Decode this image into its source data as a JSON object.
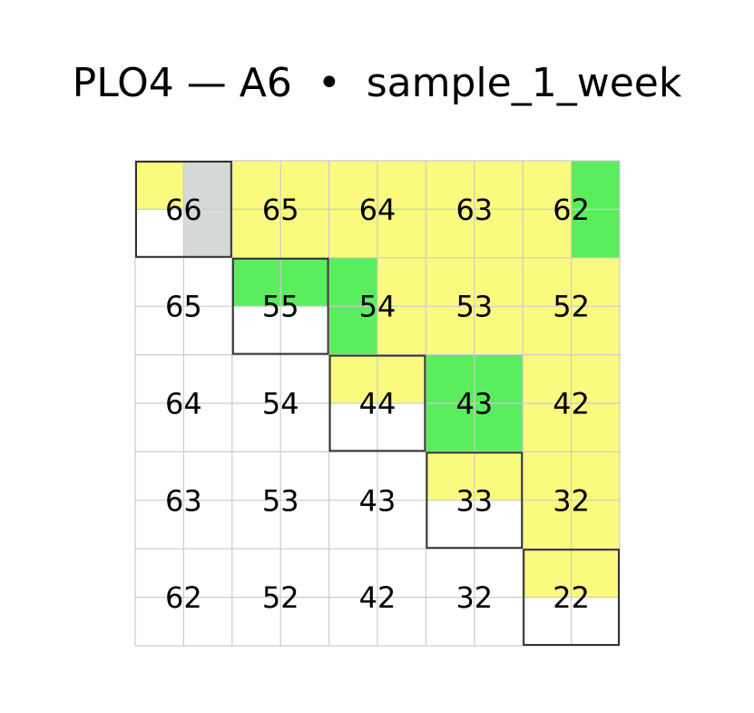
{
  "title": "PLO4 — A6  •  sample_1_week",
  "colors": {
    "yellow": "#fafa7f",
    "green": "#5aed5e",
    "gray": "#d5d9d8",
    "white": "#ffffff",
    "grid_line": "#cccccc",
    "outline": "#333333"
  },
  "grid": {
    "rows": [
      [
        {
          "label": "66",
          "quadrants": [
            "yellow",
            "gray",
            "white",
            "gray"
          ],
          "outlined": true
        },
        {
          "label": "65",
          "quadrants": [
            "yellow",
            "yellow",
            "yellow",
            "yellow"
          ],
          "outlined": false
        },
        {
          "label": "64",
          "quadrants": [
            "yellow",
            "yellow",
            "yellow",
            "yellow"
          ],
          "outlined": false
        },
        {
          "label": "63",
          "quadrants": [
            "yellow",
            "yellow",
            "yellow",
            "yellow"
          ],
          "outlined": false
        },
        {
          "label": "62",
          "quadrants": [
            "yellow",
            "green",
            "yellow",
            "green"
          ],
          "outlined": false
        }
      ],
      [
        {
          "label": "65",
          "quadrants": [
            "white",
            "white",
            "white",
            "white"
          ],
          "outlined": false
        },
        {
          "label": "55",
          "quadrants": [
            "green",
            "green",
            "white",
            "white"
          ],
          "outlined": true
        },
        {
          "label": "54",
          "quadrants": [
            "green",
            "yellow",
            "green",
            "yellow"
          ],
          "outlined": false
        },
        {
          "label": "53",
          "quadrants": [
            "yellow",
            "yellow",
            "yellow",
            "yellow"
          ],
          "outlined": false
        },
        {
          "label": "52",
          "quadrants": [
            "yellow",
            "yellow",
            "yellow",
            "yellow"
          ],
          "outlined": false
        }
      ],
      [
        {
          "label": "64",
          "quadrants": [
            "white",
            "white",
            "white",
            "white"
          ],
          "outlined": false
        },
        {
          "label": "54",
          "quadrants": [
            "white",
            "white",
            "white",
            "white"
          ],
          "outlined": false
        },
        {
          "label": "44",
          "quadrants": [
            "yellow",
            "yellow",
            "white",
            "white"
          ],
          "outlined": true
        },
        {
          "label": "43",
          "quadrants": [
            "green",
            "green",
            "green",
            "green"
          ],
          "outlined": false
        },
        {
          "label": "42",
          "quadrants": [
            "yellow",
            "yellow",
            "yellow",
            "yellow"
          ],
          "outlined": false
        }
      ],
      [
        {
          "label": "63",
          "quadrants": [
            "white",
            "white",
            "white",
            "white"
          ],
          "outlined": false
        },
        {
          "label": "53",
          "quadrants": [
            "white",
            "white",
            "white",
            "white"
          ],
          "outlined": false
        },
        {
          "label": "43",
          "quadrants": [
            "white",
            "white",
            "white",
            "white"
          ],
          "outlined": false
        },
        {
          "label": "33",
          "quadrants": [
            "yellow",
            "yellow",
            "white",
            "white"
          ],
          "outlined": true
        },
        {
          "label": "32",
          "quadrants": [
            "yellow",
            "yellow",
            "yellow",
            "yellow"
          ],
          "outlined": false
        }
      ],
      [
        {
          "label": "62",
          "quadrants": [
            "white",
            "white",
            "white",
            "white"
          ],
          "outlined": false
        },
        {
          "label": "52",
          "quadrants": [
            "white",
            "white",
            "white",
            "white"
          ],
          "outlined": false
        },
        {
          "label": "42",
          "quadrants": [
            "white",
            "white",
            "white",
            "white"
          ],
          "outlined": false
        },
        {
          "label": "32",
          "quadrants": [
            "white",
            "white",
            "white",
            "white"
          ],
          "outlined": false
        },
        {
          "label": "22",
          "quadrants": [
            "yellow",
            "yellow",
            "white",
            "white"
          ],
          "outlined": true
        }
      ]
    ]
  }
}
